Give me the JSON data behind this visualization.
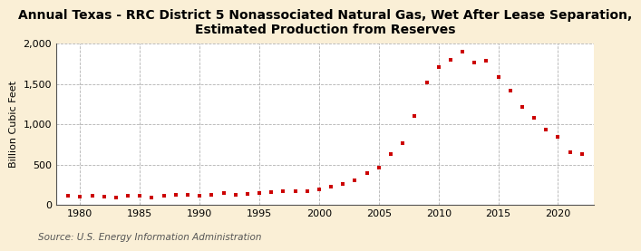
{
  "title": "Annual Texas - RRC District 5 Nonassociated Natural Gas, Wet After Lease Separation,\nEstimated Production from Reserves",
  "ylabel": "Billion Cubic Feet",
  "source": "Source: U.S. Energy Information Administration",
  "background_color": "#faefd6",
  "plot_bg_color": "#ffffff",
  "marker_color": "#cc0000",
  "years": [
    1979,
    1980,
    1981,
    1982,
    1983,
    1984,
    1985,
    1986,
    1987,
    1988,
    1989,
    1990,
    1991,
    1992,
    1993,
    1994,
    1995,
    1996,
    1997,
    1998,
    1999,
    2000,
    2001,
    2002,
    2003,
    2004,
    2005,
    2006,
    2007,
    2008,
    2009,
    2010,
    2011,
    2012,
    2013,
    2014,
    2015,
    2016,
    2017,
    2018,
    2019,
    2020,
    2021,
    2022
  ],
  "values": [
    115,
    105,
    110,
    105,
    95,
    115,
    110,
    95,
    110,
    120,
    120,
    115,
    130,
    145,
    130,
    140,
    145,
    160,
    170,
    165,
    175,
    195,
    230,
    265,
    310,
    390,
    460,
    630,
    760,
    1100,
    1520,
    1710,
    1800,
    1900,
    1770,
    1790,
    1580,
    1420,
    1210,
    1080,
    935,
    840,
    650,
    630
  ],
  "ylim": [
    0,
    2000
  ],
  "yticks": [
    0,
    500,
    1000,
    1500,
    2000
  ],
  "ytick_labels": [
    "0",
    "500",
    "1,000",
    "1,500",
    "2,000"
  ],
  "xlim": [
    1978,
    2023
  ],
  "xticks": [
    1980,
    1985,
    1990,
    1995,
    2000,
    2005,
    2010,
    2015,
    2020
  ],
  "title_fontsize": 10,
  "label_fontsize": 8,
  "tick_fontsize": 8,
  "source_fontsize": 7.5
}
